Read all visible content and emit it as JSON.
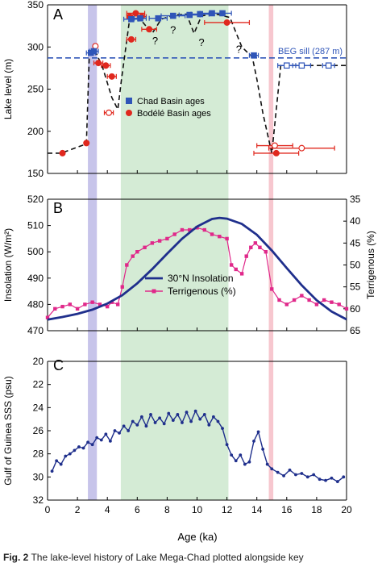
{
  "caption": {
    "label": "Fig. 2",
    "text": "The lake-level history of Lake Mega-Chad plotted alongside key"
  },
  "colors": {
    "navy": "#1f2f8c",
    "blue_marker": "#2f55b8",
    "red": "#e0281e",
    "magenta": "#e0288a",
    "purple_band": "#c7c4ea",
    "green_band": "#d4ebd5",
    "pink_band": "#f7c7cf",
    "dashed": "#111111"
  },
  "shared": {
    "xlabel": "Age (ka)",
    "xticks": [
      "0",
      "2",
      "4",
      "6",
      "8",
      "10",
      "12",
      "14",
      "16",
      "18",
      "20"
    ],
    "xlim": [
      0,
      20
    ],
    "bands": [
      {
        "from": 2.7,
        "to": 3.3,
        "color": "purple"
      },
      {
        "from": 4.9,
        "to": 12.1,
        "color": "green"
      },
      {
        "from": 14.8,
        "to": 15.1,
        "color": "pink"
      }
    ]
  },
  "chart_data": [
    {
      "type": "scatter",
      "panel": "A",
      "ylabel": "Lake level (m)",
      "ylim": [
        150,
        350
      ],
      "yticks": [
        "150",
        "200",
        "250",
        "300",
        "350"
      ],
      "legend": [
        "Chad Basin ages",
        "Bodélé Basin ages"
      ],
      "legend_placement": "center",
      "sill": {
        "label": "BEG sill (287 m)",
        "value": 287
      },
      "annotations": [
        "?",
        "?",
        "?",
        "?"
      ],
      "lake_curve": {
        "x": [
          0,
          0.9,
          2.6,
          2.8,
          3.2,
          3.7,
          4.3,
          4.7,
          4.95,
          5.5,
          6.2,
          7.0,
          7.6,
          8.5,
          9.3,
          9.8,
          10.3,
          10.8,
          11.3,
          12.2,
          13.0,
          13.7,
          14.0,
          14.4,
          14.8,
          15.0,
          15.6,
          20
        ],
        "y": [
          174,
          174,
          185,
          293,
          295,
          275,
          240,
          226,
          262,
          334,
          333,
          316,
          333,
          338,
          339,
          316,
          337,
          338,
          339,
          335,
          300,
          288,
          262,
          222,
          190,
          174,
          278,
          278
        ]
      },
      "chad_points": [
        {
          "x": 2.9,
          "y": 293,
          "xerr": 0.3
        },
        {
          "x": 3.1,
          "y": 295,
          "xerr": 0.3
        },
        {
          "x": 5.6,
          "y": 333,
          "xerr": 0.5
        },
        {
          "x": 6.2,
          "y": 334,
          "xerr": 0.4
        },
        {
          "x": 7.4,
          "y": 334,
          "xerr": 0.6
        },
        {
          "x": 8.4,
          "y": 337,
          "xerr": 0.8
        },
        {
          "x": 9.5,
          "y": 338,
          "xerr": 0.7
        },
        {
          "x": 10.2,
          "y": 339,
          "xerr": 0.6
        },
        {
          "x": 11.0,
          "y": 340,
          "xerr": 0.8
        },
        {
          "x": 11.7,
          "y": 340,
          "xerr": 0.6
        },
        {
          "x": 13.8,
          "y": 290,
          "xerr": 0.3
        },
        {
          "x": 16.0,
          "y": 278,
          "xerr": 0.6,
          "open": true
        },
        {
          "x": 17.0,
          "y": 278,
          "xerr": 0.6,
          "open": true
        },
        {
          "x": 18.8,
          "y": 278,
          "xerr": 0.4,
          "open": true
        }
      ],
      "bodele_points": [
        {
          "x": 1.0,
          "y": 174,
          "xerr": 0.1
        },
        {
          "x": 2.6,
          "y": 186,
          "xerr": 0.1
        },
        {
          "x": 3.2,
          "y": 301,
          "xerr": 0.1,
          "open": true
        },
        {
          "x": 3.4,
          "y": 281,
          "xerr": 0.3
        },
        {
          "x": 3.9,
          "y": 278,
          "xerr": 0.3
        },
        {
          "x": 4.3,
          "y": 265,
          "xerr": 0.3
        },
        {
          "x": 4.1,
          "y": 222,
          "xerr": 0.3,
          "open": true
        },
        {
          "x": 5.5,
          "y": 336,
          "xerr": 0.2
        },
        {
          "x": 5.9,
          "y": 340,
          "xerr": 0.6
        },
        {
          "x": 6.3,
          "y": 336,
          "xerr": 0.3
        },
        {
          "x": 6.8,
          "y": 321,
          "xerr": 0.5
        },
        {
          "x": 5.6,
          "y": 309,
          "xerr": 0.3
        },
        {
          "x": 12.0,
          "y": 329,
          "xerr": 1.5
        },
        {
          "x": 15.3,
          "y": 174,
          "xerr": 1.5
        },
        {
          "x": 15.2,
          "y": 183,
          "xerr": 1.2,
          "open": true
        },
        {
          "x": 17.0,
          "y": 180,
          "xerr": 2.2,
          "open": true
        }
      ]
    },
    {
      "type": "line",
      "panel": "B",
      "ylabel": "Insolation (W/m²)",
      "ylabel_right": "Terrigenous (%)",
      "ylim": [
        470,
        520
      ],
      "yticks": [
        "470",
        "480",
        "490",
        "500",
        "510",
        "520"
      ],
      "ylim_right": [
        65,
        35
      ],
      "yticks_right": [
        "35",
        "40",
        "45",
        "50",
        "55",
        "60",
        "65"
      ],
      "legend_placement": "center",
      "series": [
        {
          "name": "30°N Insolation",
          "x": [
            0,
            1,
            2,
            3,
            4,
            5,
            6,
            7,
            8,
            9,
            10,
            11,
            11.5,
            12,
            13,
            14,
            15,
            16,
            17,
            18,
            19,
            20
          ],
          "values": [
            474.2,
            475.2,
            476.4,
            478.0,
            480.3,
            483.5,
            488.0,
            493.4,
            499.3,
            505.0,
            509.6,
            512.5,
            512.9,
            512.6,
            510.6,
            506.5,
            500.5,
            493.8,
            487.3,
            481.6,
            477.3,
            474.3
          ]
        },
        {
          "name": "Terrigenous (%)",
          "x": [
            0,
            0.5,
            1,
            1.5,
            2,
            2.5,
            3,
            3.5,
            4,
            4.3,
            4.7,
            5.0,
            5.3,
            5.7,
            6,
            6.5,
            7,
            7.5,
            8,
            8.5,
            9,
            9.5,
            10,
            10.5,
            11,
            11.5,
            12,
            12.3,
            12.6,
            13,
            13.3,
            13.6,
            13.9,
            14.2,
            14.6,
            15,
            15.5,
            16,
            16.5,
            17,
            17.5,
            18,
            18.5,
            19,
            19.5,
            20
          ],
          "values": [
            62,
            60,
            59.5,
            59,
            60,
            59,
            58.5,
            59,
            59.5,
            58.5,
            59,
            55,
            50,
            48,
            47,
            46,
            45,
            44.5,
            44,
            43,
            42,
            42,
            41.5,
            42,
            43,
            43.5,
            44,
            50,
            51,
            52,
            48,
            46,
            45,
            46,
            47,
            55.5,
            58,
            59,
            58,
            57,
            58,
            59,
            58,
            58.5,
            59,
            60
          ]
        }
      ]
    },
    {
      "type": "line",
      "panel": "C",
      "ylabel": "Gulf of Guinea SSS (psu)",
      "ylim": [
        32,
        20
      ],
      "yticks": [
        "20",
        "22",
        "24",
        "26",
        "28",
        "30",
        "32"
      ],
      "series": [
        {
          "x": [
            0.3,
            0.6,
            0.9,
            1.2,
            1.5,
            1.8,
            2.1,
            2.4,
            2.7,
            3.0,
            3.3,
            3.6,
            3.9,
            4.2,
            4.5,
            4.8,
            5.1,
            5.4,
            5.7,
            6.0,
            6.3,
            6.6,
            6.9,
            7.2,
            7.5,
            7.8,
            8.1,
            8.4,
            8.7,
            9.0,
            9.3,
            9.6,
            9.9,
            10.2,
            10.5,
            10.8,
            11.1,
            11.4,
            11.7,
            12.0,
            12.3,
            12.6,
            12.9,
            13.2,
            13.5,
            13.8,
            14.1,
            14.4,
            14.7,
            15.0,
            15.4,
            15.8,
            16.2,
            16.6,
            17.0,
            17.4,
            17.8,
            18.2,
            18.6,
            19.0,
            19.4,
            19.8
          ],
          "values": [
            29.5,
            28.6,
            28.9,
            28.2,
            28.0,
            27.7,
            27.4,
            27.5,
            27.0,
            27.2,
            26.6,
            26.8,
            26.3,
            26.9,
            26.0,
            26.2,
            25.6,
            26.0,
            25.2,
            25.5,
            24.8,
            25.6,
            24.6,
            25.3,
            24.9,
            25.4,
            24.5,
            25.1,
            24.6,
            25.3,
            24.4,
            25.2,
            24.3,
            25.0,
            24.6,
            25.5,
            24.8,
            25.2,
            25.8,
            27.2,
            28.1,
            28.6,
            28.1,
            28.9,
            28.7,
            26.9,
            26.1,
            27.6,
            28.9,
            29.3,
            29.6,
            29.9,
            29.4,
            29.8,
            29.7,
            30.0,
            29.8,
            30.2,
            30.3,
            30.1,
            30.4,
            30.0
          ]
        }
      ]
    }
  ],
  "panel_letters": [
    "A",
    "B",
    "C"
  ]
}
